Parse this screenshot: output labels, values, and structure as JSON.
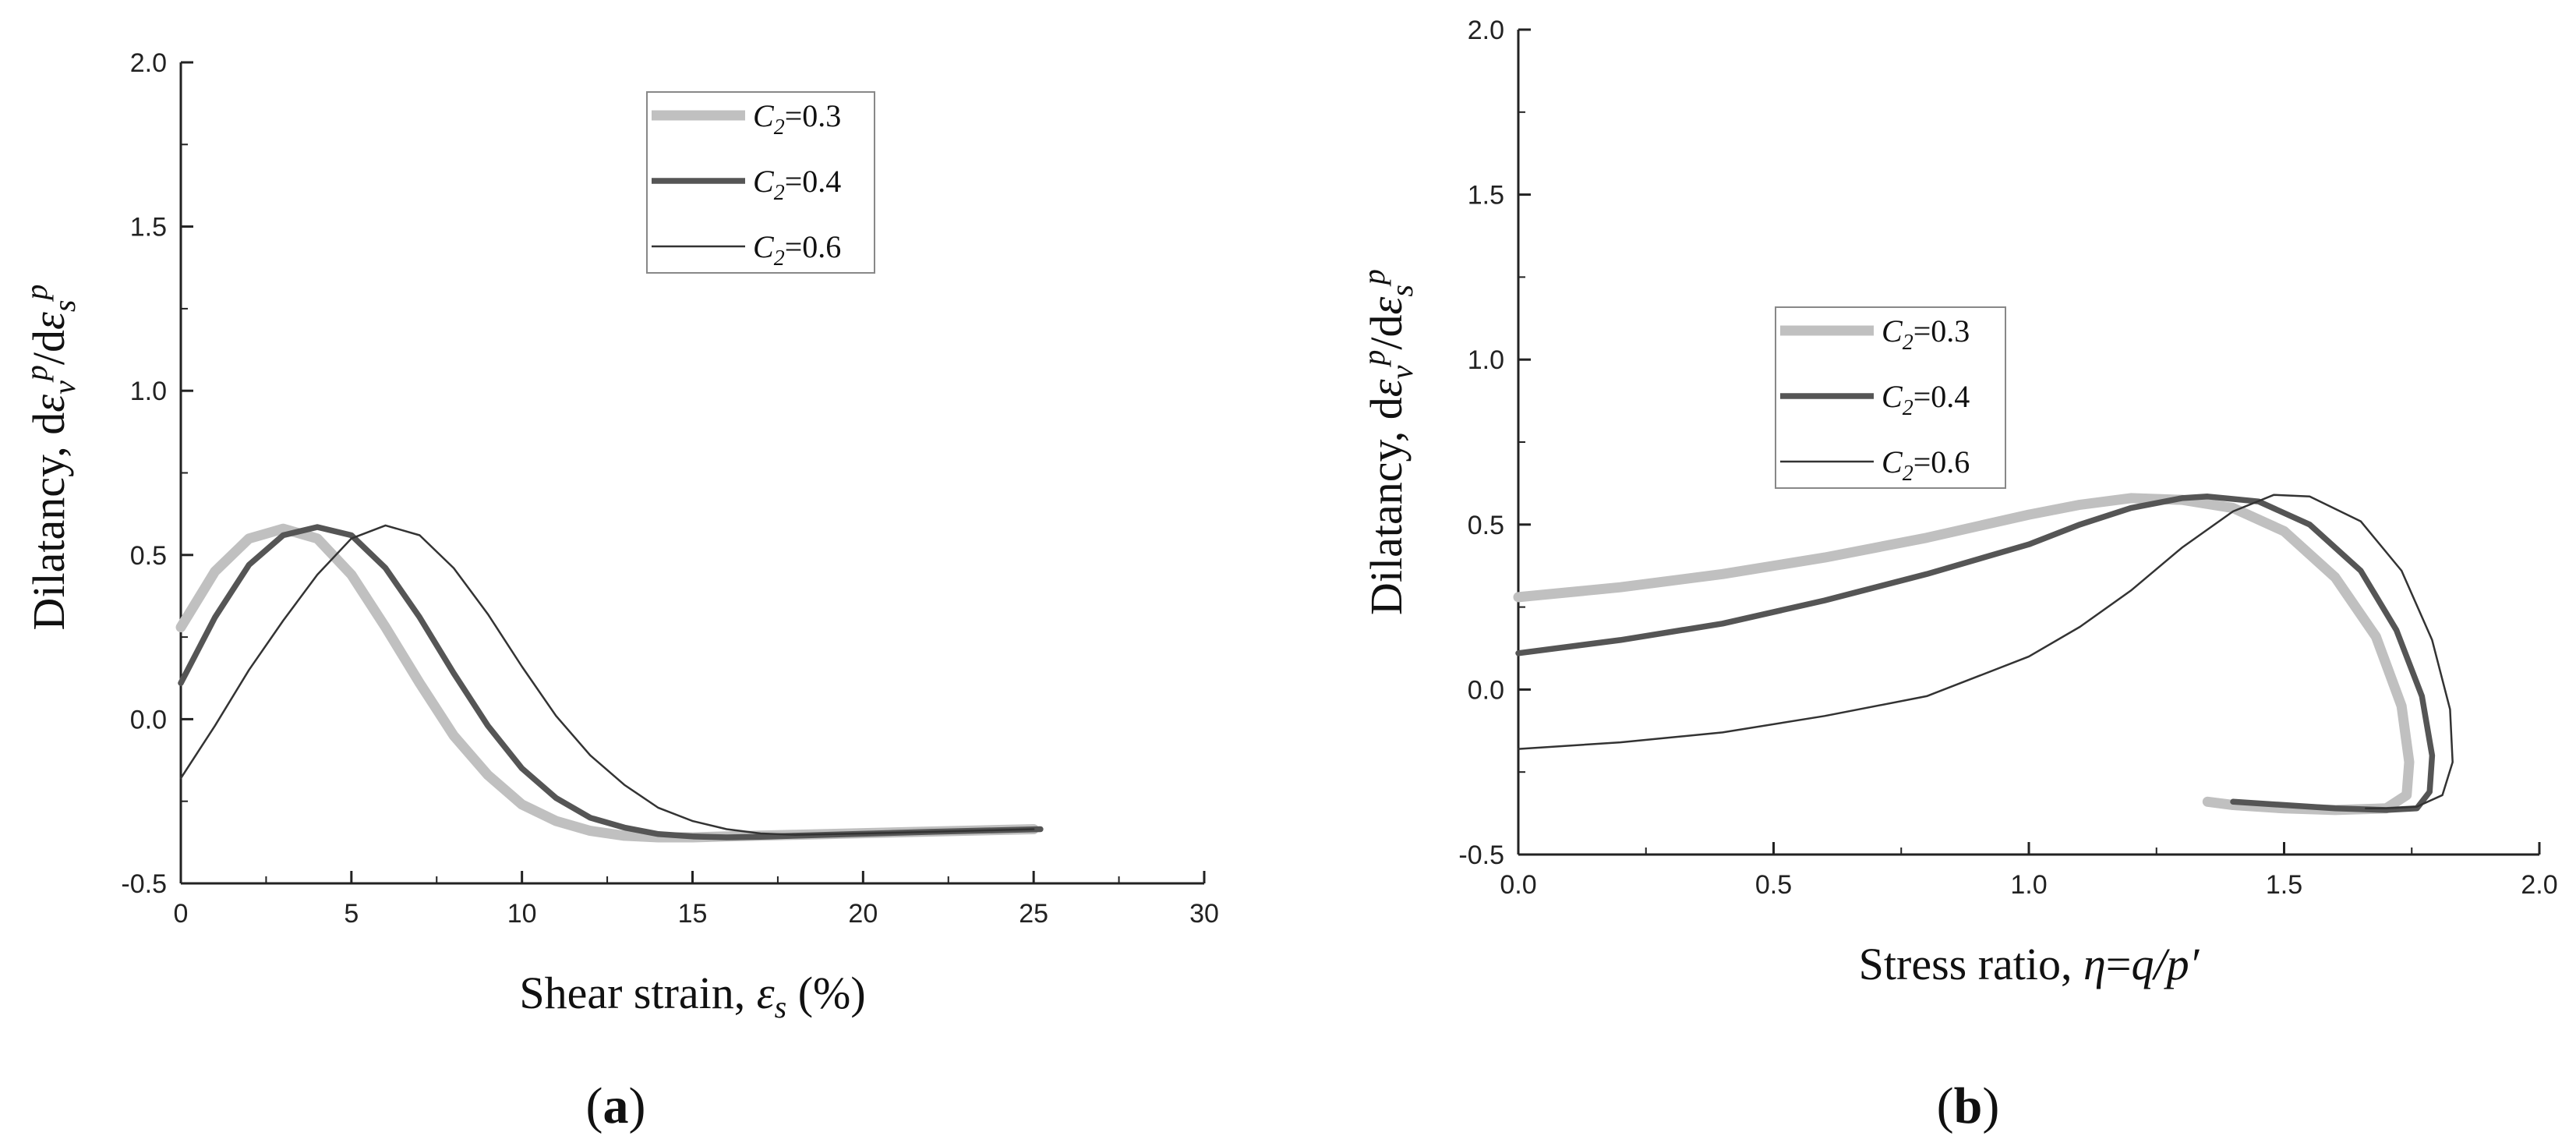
{
  "chart_data": [
    {
      "type": "line",
      "panel_label": "a",
      "xlabel": "Shear strain, εs (%)",
      "ylabel": "Dilatancy, dεvp/dεsp",
      "xlim": [
        0,
        30
      ],
      "ylim": [
        -0.5,
        2.0
      ],
      "xticks": [
        0,
        5,
        10,
        15,
        20,
        25,
        30
      ],
      "yticks": [
        -0.5,
        0.0,
        0.5,
        1.0,
        1.5,
        2.0
      ],
      "xtick_labels": [
        "0",
        "5",
        "10",
        "15",
        "20",
        "25",
        "30"
      ],
      "ytick_labels": [
        "-0.5",
        "0.0",
        "0.5",
        "1.0",
        "1.5",
        "2.0"
      ],
      "legend_position": "top-center",
      "series": [
        {
          "name": "C2=0.3",
          "color": "#c0c0c0",
          "x": [
            0,
            1,
            2,
            3,
            4,
            5,
            6,
            7,
            8,
            9,
            10,
            11,
            12,
            13,
            14,
            15,
            16,
            18,
            20,
            22,
            25
          ],
          "y": [
            0.28,
            0.45,
            0.55,
            0.58,
            0.55,
            0.44,
            0.28,
            0.11,
            -0.05,
            -0.17,
            -0.26,
            -0.31,
            -0.34,
            -0.355,
            -0.36,
            -0.36,
            -0.357,
            -0.352,
            -0.347,
            -0.342,
            -0.335
          ]
        },
        {
          "name": "C2=0.4",
          "color": "#555555",
          "x": [
            0,
            1,
            2,
            3,
            4,
            5,
            6,
            7,
            8,
            9,
            10,
            11,
            12,
            13,
            14,
            15,
            16,
            17,
            18,
            20,
            22,
            25.2
          ],
          "y": [
            0.11,
            0.31,
            0.47,
            0.56,
            0.585,
            0.56,
            0.46,
            0.31,
            0.14,
            -0.02,
            -0.15,
            -0.24,
            -0.3,
            -0.33,
            -0.35,
            -0.357,
            -0.36,
            -0.358,
            -0.355,
            -0.349,
            -0.343,
            -0.335
          ]
        },
        {
          "name": "C2=0.6",
          "color": "#333333",
          "x": [
            0,
            1,
            2,
            3,
            4,
            5,
            6,
            7,
            8,
            9,
            10,
            11,
            12,
            13,
            14,
            15,
            16,
            17,
            18,
            20,
            22,
            25
          ],
          "y": [
            -0.18,
            -0.02,
            0.15,
            0.3,
            0.44,
            0.55,
            0.59,
            0.56,
            0.46,
            0.32,
            0.16,
            0.01,
            -0.11,
            -0.2,
            -0.27,
            -0.31,
            -0.335,
            -0.348,
            -0.352,
            -0.348,
            -0.343,
            -0.335
          ]
        }
      ]
    },
    {
      "type": "line",
      "panel_label": "b",
      "xlabel": "Stress ratio, η=q/p′",
      "ylabel": "Dilatancy, dεvp/dεsp",
      "xlim": [
        0.0,
        2.0
      ],
      "ylim": [
        -0.5,
        2.0
      ],
      "xticks": [
        0.0,
        0.5,
        1.0,
        1.5,
        2.0
      ],
      "yticks": [
        -0.5,
        0.0,
        0.5,
        1.0,
        1.5,
        2.0
      ],
      "xtick_labels": [
        "0.0",
        "0.5",
        "1.0",
        "1.5",
        "2.0"
      ],
      "ytick_labels": [
        "-0.5",
        "0.0",
        "0.5",
        "1.0",
        "1.5",
        "2.0"
      ],
      "legend_position": "center-left",
      "series": [
        {
          "name": "C2=0.3",
          "color": "#c0c0c0",
          "x": [
            0.0,
            0.2,
            0.4,
            0.6,
            0.8,
            1.0,
            1.1,
            1.2,
            1.3,
            1.4,
            1.5,
            1.6,
            1.68,
            1.73,
            1.745,
            1.74,
            1.7,
            1.6,
            1.5,
            1.4,
            1.35
          ],
          "y": [
            0.28,
            0.31,
            0.35,
            0.4,
            0.46,
            0.53,
            0.56,
            0.58,
            0.575,
            0.55,
            0.48,
            0.34,
            0.16,
            -0.05,
            -0.22,
            -0.32,
            -0.36,
            -0.365,
            -0.36,
            -0.35,
            -0.34
          ]
        },
        {
          "name": "C2=0.4",
          "color": "#555555",
          "x": [
            0.0,
            0.2,
            0.4,
            0.6,
            0.8,
            1.0,
            1.1,
            1.2,
            1.3,
            1.35,
            1.45,
            1.55,
            1.65,
            1.72,
            1.77,
            1.79,
            1.785,
            1.76,
            1.7,
            1.6,
            1.5,
            1.4
          ],
          "y": [
            0.11,
            0.15,
            0.2,
            0.27,
            0.35,
            0.44,
            0.5,
            0.55,
            0.58,
            0.585,
            0.57,
            0.5,
            0.36,
            0.18,
            -0.02,
            -0.2,
            -0.31,
            -0.36,
            -0.365,
            -0.36,
            -0.35,
            -0.34
          ]
        },
        {
          "name": "C2=0.6",
          "color": "#333333",
          "x": [
            0.0,
            0.2,
            0.4,
            0.6,
            0.8,
            1.0,
            1.1,
            1.2,
            1.3,
            1.4,
            1.48,
            1.55,
            1.65,
            1.73,
            1.79,
            1.825,
            1.83,
            1.81,
            1.76,
            1.7,
            1.66
          ],
          "y": [
            -0.18,
            -0.16,
            -0.13,
            -0.08,
            -0.02,
            0.1,
            0.19,
            0.3,
            0.43,
            0.54,
            0.59,
            0.585,
            0.51,
            0.36,
            0.15,
            -0.06,
            -0.22,
            -0.32,
            -0.355,
            -0.36,
            -0.36
          ]
        }
      ]
    }
  ]
}
